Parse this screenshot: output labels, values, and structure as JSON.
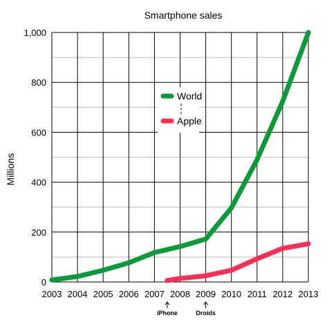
{
  "chart_data": {
    "type": "line",
    "title": "Smartphone sales",
    "xlabel": "",
    "ylabel": "Millions",
    "xlim": [
      2003,
      2013
    ],
    "ylim": [
      0,
      1000
    ],
    "x_ticks": [
      "2003",
      "2004",
      "2005",
      "2006",
      "2007",
      "2008",
      "2009",
      "2010",
      "2011",
      "2012",
      "2013"
    ],
    "y_ticks": [
      "0",
      "200",
      "400",
      "600",
      "800",
      "1,000"
    ],
    "y_tick_values": [
      0,
      200,
      400,
      600,
      800,
      1000
    ],
    "grid": true,
    "legend_position": "center",
    "series": [
      {
        "name": "World",
        "color": "#0b9a3a",
        "x": [
          2003,
          2004,
          2005,
          2006,
          2007,
          2008,
          2009,
          2010,
          2011,
          2012,
          2013
        ],
        "values": [
          8,
          22,
          47,
          77,
          118,
          142,
          172,
          297,
          490,
          724,
          1000
        ]
      },
      {
        "name": "Apple",
        "color": "#ff2e55",
        "x": [
          2007.5,
          2008,
          2009,
          2010,
          2011,
          2012,
          2013
        ],
        "values": [
          6,
          14,
          25,
          47,
          93,
          135,
          153
        ]
      }
    ],
    "annotations": [
      {
        "text": "iPhone",
        "x": 2007.5
      },
      {
        "text": "Droids",
        "x": 2009
      }
    ]
  }
}
